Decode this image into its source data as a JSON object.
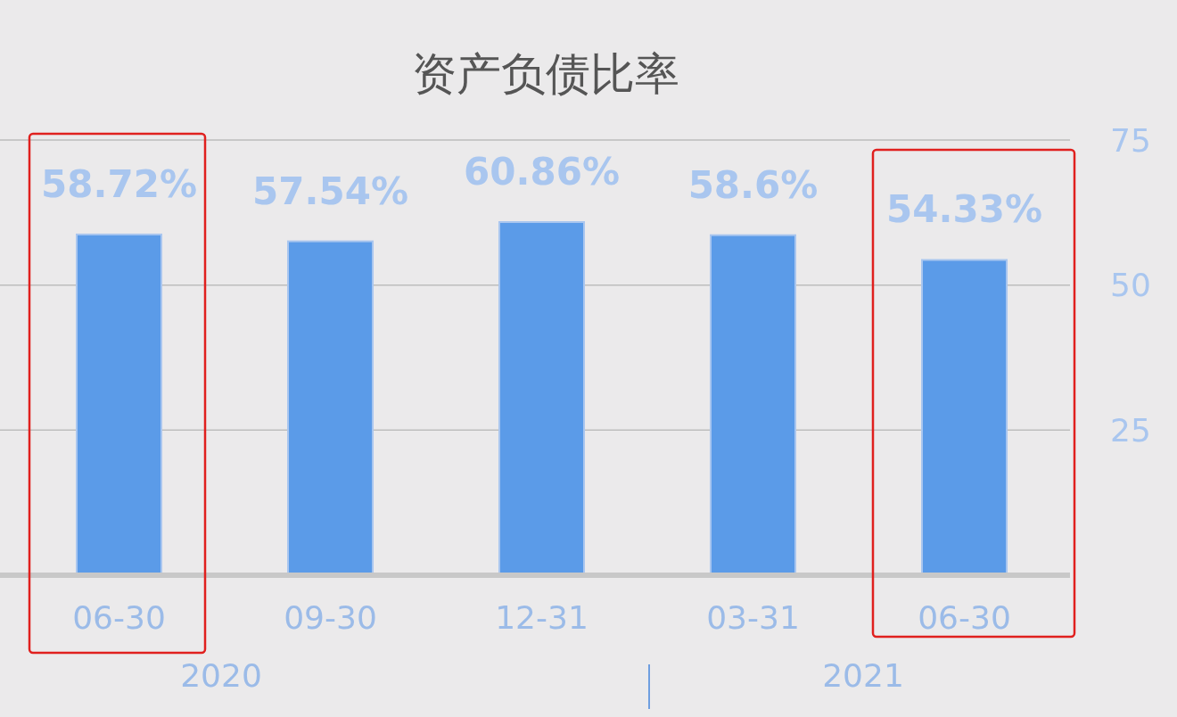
{
  "chart_data": {
    "type": "bar",
    "title": "资产负债比率",
    "categories": [
      "06-30",
      "09-30",
      "12-31",
      "03-31",
      "06-30"
    ],
    "values": [
      58.72,
      57.54,
      60.86,
      58.6,
      54.33
    ],
    "value_labels": [
      "58.72%",
      "57.54%",
      "60.86%",
      "58.6%",
      "54.33%"
    ],
    "color": "#5b9be8",
    "ylim": [
      0,
      75
    ],
    "yticks": [
      {
        "value": 0,
        "label": null
      },
      25,
      50,
      75
    ],
    "grid": "y",
    "annotations": [
      "2020",
      "2021"
    ]
  }
}
